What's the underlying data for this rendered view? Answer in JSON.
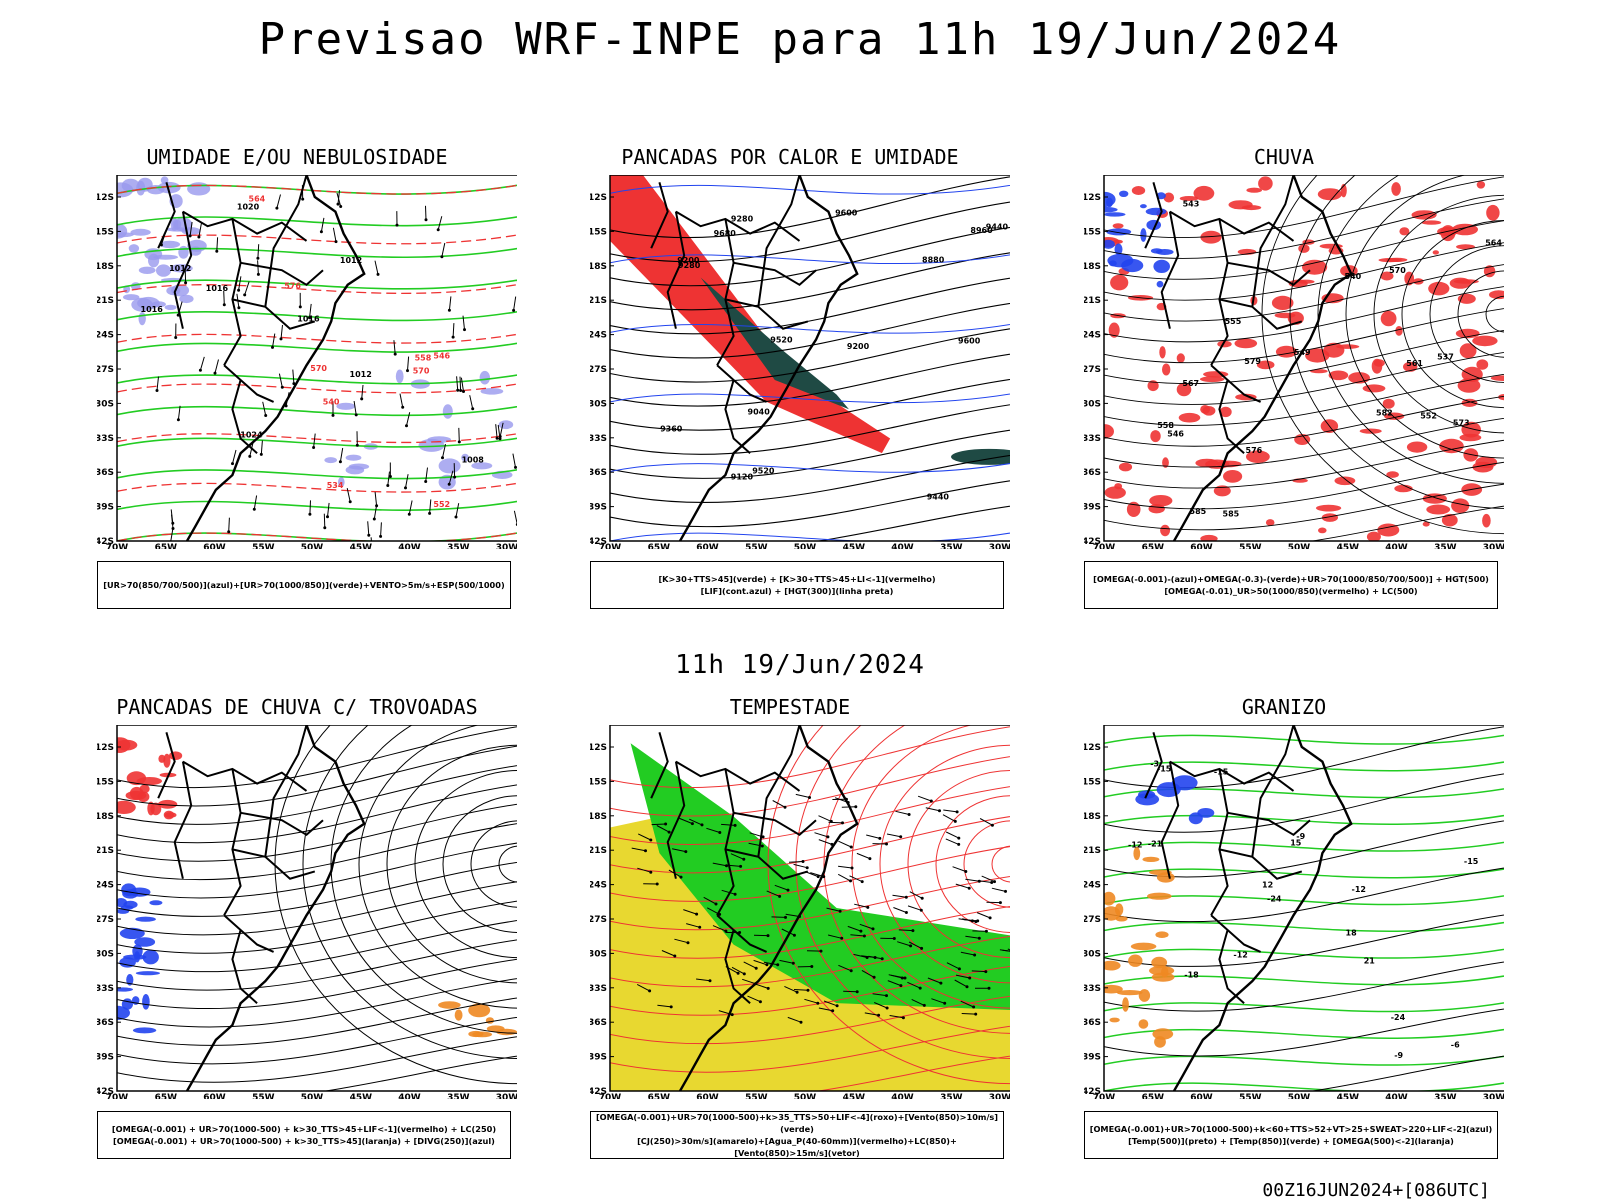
{
  "title": "Previsao WRF-INPE  para 11h 19/Jun/2024",
  "subtitle": "11h 19/Jun/2024",
  "footer": "00Z16JUN2024+[086UTC]",
  "axes": {
    "lat_labels": [
      "12S",
      "15S",
      "18S",
      "21S",
      "24S",
      "27S",
      "30S",
      "33S",
      "36S",
      "39S",
      "42S"
    ],
    "lon_labels": [
      "70W",
      "65W",
      "60W",
      "55W",
      "50W",
      "45W",
      "40W",
      "35W",
      "30W"
    ]
  },
  "colors": {
    "green": "#22cc22",
    "red": "#ee3333",
    "blue": "#2244ee",
    "lightblue": "#9999ee",
    "yellow": "#e8d830",
    "darkteal": "#1f4a44",
    "orange": "#ee8822",
    "purple": "#bb22bb"
  },
  "panels": [
    {
      "title": "UMIDADE E/OU NEBULOSIDADE",
      "legend": [
        "[UR>70(850/700/500)](azul)+[UR>70(1000/850)](verde)+VENTO>5m/s+ESP(500/1000)"
      ],
      "labels": [
        "1016",
        "1012",
        "1016",
        "1020",
        "1024",
        "1012",
        "1016",
        "1012",
        "1008",
        "570",
        "564",
        "558",
        "552",
        "546",
        "540",
        "534",
        "576",
        "570"
      ]
    },
    {
      "title": "PANCADAS POR CALOR E UMIDADE",
      "legend": [
        "[K>30+TTS>45](verde) + [K>30+TTS>45+LI<-1](vermelho)",
        "[LIF](cont.azul) + [HGT(300)](linha preta)"
      ],
      "labels": [
        "9680",
        "9600",
        "9520",
        "9440",
        "9360",
        "9280",
        "9200",
        "9120",
        "9040",
        "8960",
        "8880",
        "9280",
        "9200",
        "9440",
        "9520",
        "9600"
      ]
    },
    {
      "title": "CHUVA",
      "legend": [
        "[OMEGA(-0.001)-(azul)+OMEGA(-0.3)-(verde)+UR>70(1000/850/700/500)] + HGT(500)",
        "[OMEGA(-0.01)_UR>50(1000/850)(vermelho) + LC(500)"
      ],
      "labels": [
        "585",
        "582",
        "579",
        "576",
        "573",
        "570",
        "567",
        "564",
        "561",
        "558",
        "555",
        "552",
        "549",
        "546",
        "543",
        "540",
        "537",
        "585"
      ]
    },
    {
      "title": "PANCADAS DE CHUVA C/ TROVOADAS",
      "legend": [
        "[OMEGA(-0.001) + UR>70(1000-500) + k>30_TTS>45+LIF<-1](vermelho) + LC(250)",
        "[OMEGA(-0.001) + UR>70(1000-500) + k>30_TTS>45](laranja) + [DIVG(250)](azul)"
      ],
      "labels": []
    },
    {
      "title": "TEMPESTADE",
      "legend": [
        "[OMEGA(-0.001)+UR>70(1000-500)+k>35_TTS>50+LIF<-4](roxo)+[Vento(850)>10m/s](verde)",
        "[CJ(250)>30m/s](amarelo)+[Agua_P(40-60mm)](vermelho)+LC(850)+[Vento(850)>15m/s](vetor)"
      ],
      "labels": []
    },
    {
      "title": "GRANIZO",
      "legend": [
        "[OMEGA(-0.001)+UR>70(1000-500)+k<60+TTS>52+VT>25+SWEAT>220+LIF<-2](azul)",
        "[Temp(500)](preto) + [Temp(850)](verde) + [OMEGA(500)<-2](laranja)"
      ],
      "labels": [
        "-24",
        "-21",
        "-18",
        "-15",
        "-12",
        "-9",
        "-6",
        "-3",
        "-15",
        "-12",
        "-9",
        "12",
        "15",
        "18",
        "21",
        "-24",
        "-12",
        "-15"
      ]
    }
  ]
}
